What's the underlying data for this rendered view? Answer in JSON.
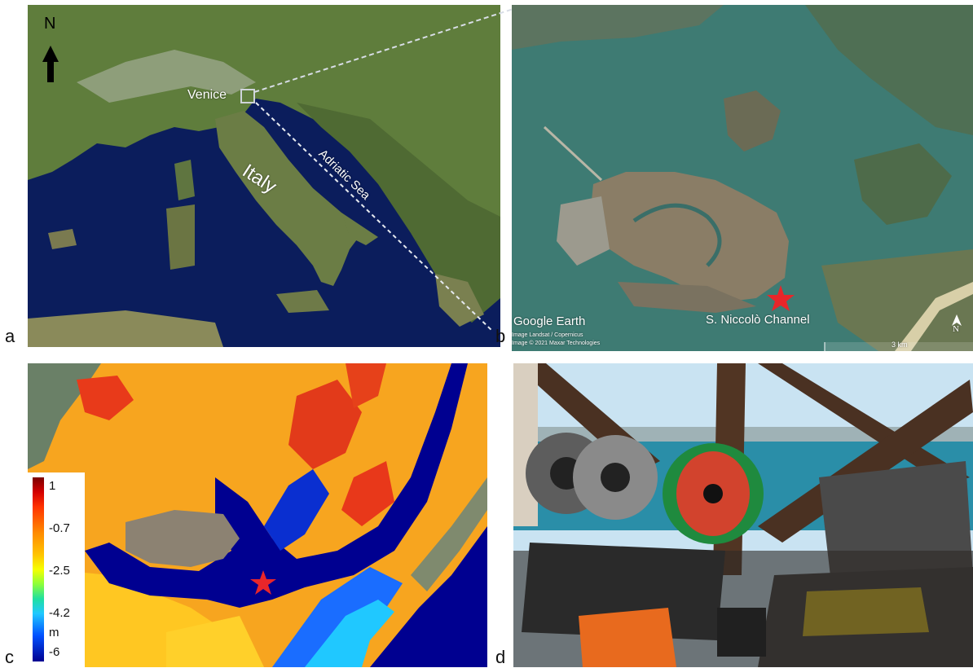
{
  "panel_labels": {
    "a": "a",
    "b": "b",
    "c": "c",
    "d": "d"
  },
  "panel_a": {
    "north_label": "N",
    "venice_label": "Venice",
    "italy_label": "Italy",
    "adriatic_label": "Adriatic Sea"
  },
  "panel_b": {
    "channel_label": "S. Niccolò Channel",
    "watermark_line1": "Google Earth",
    "credit_line1": "Image Landsat / Copernicus",
    "credit_line2": "Image © 2021 Maxar Technologies",
    "scale_label": "3 km",
    "north_label": "N"
  },
  "panel_c": {
    "legend_ticks": [
      "1",
      "-0.7",
      "-2.5",
      "-4.2",
      "m",
      "-6"
    ]
  },
  "colors": {
    "sea": "#0b1d5c",
    "land": "#5c7a3a",
    "lagoon": "#3e7b73",
    "star": "#e8262a",
    "deep": "#000090",
    "shallow": "#f7a51f"
  }
}
